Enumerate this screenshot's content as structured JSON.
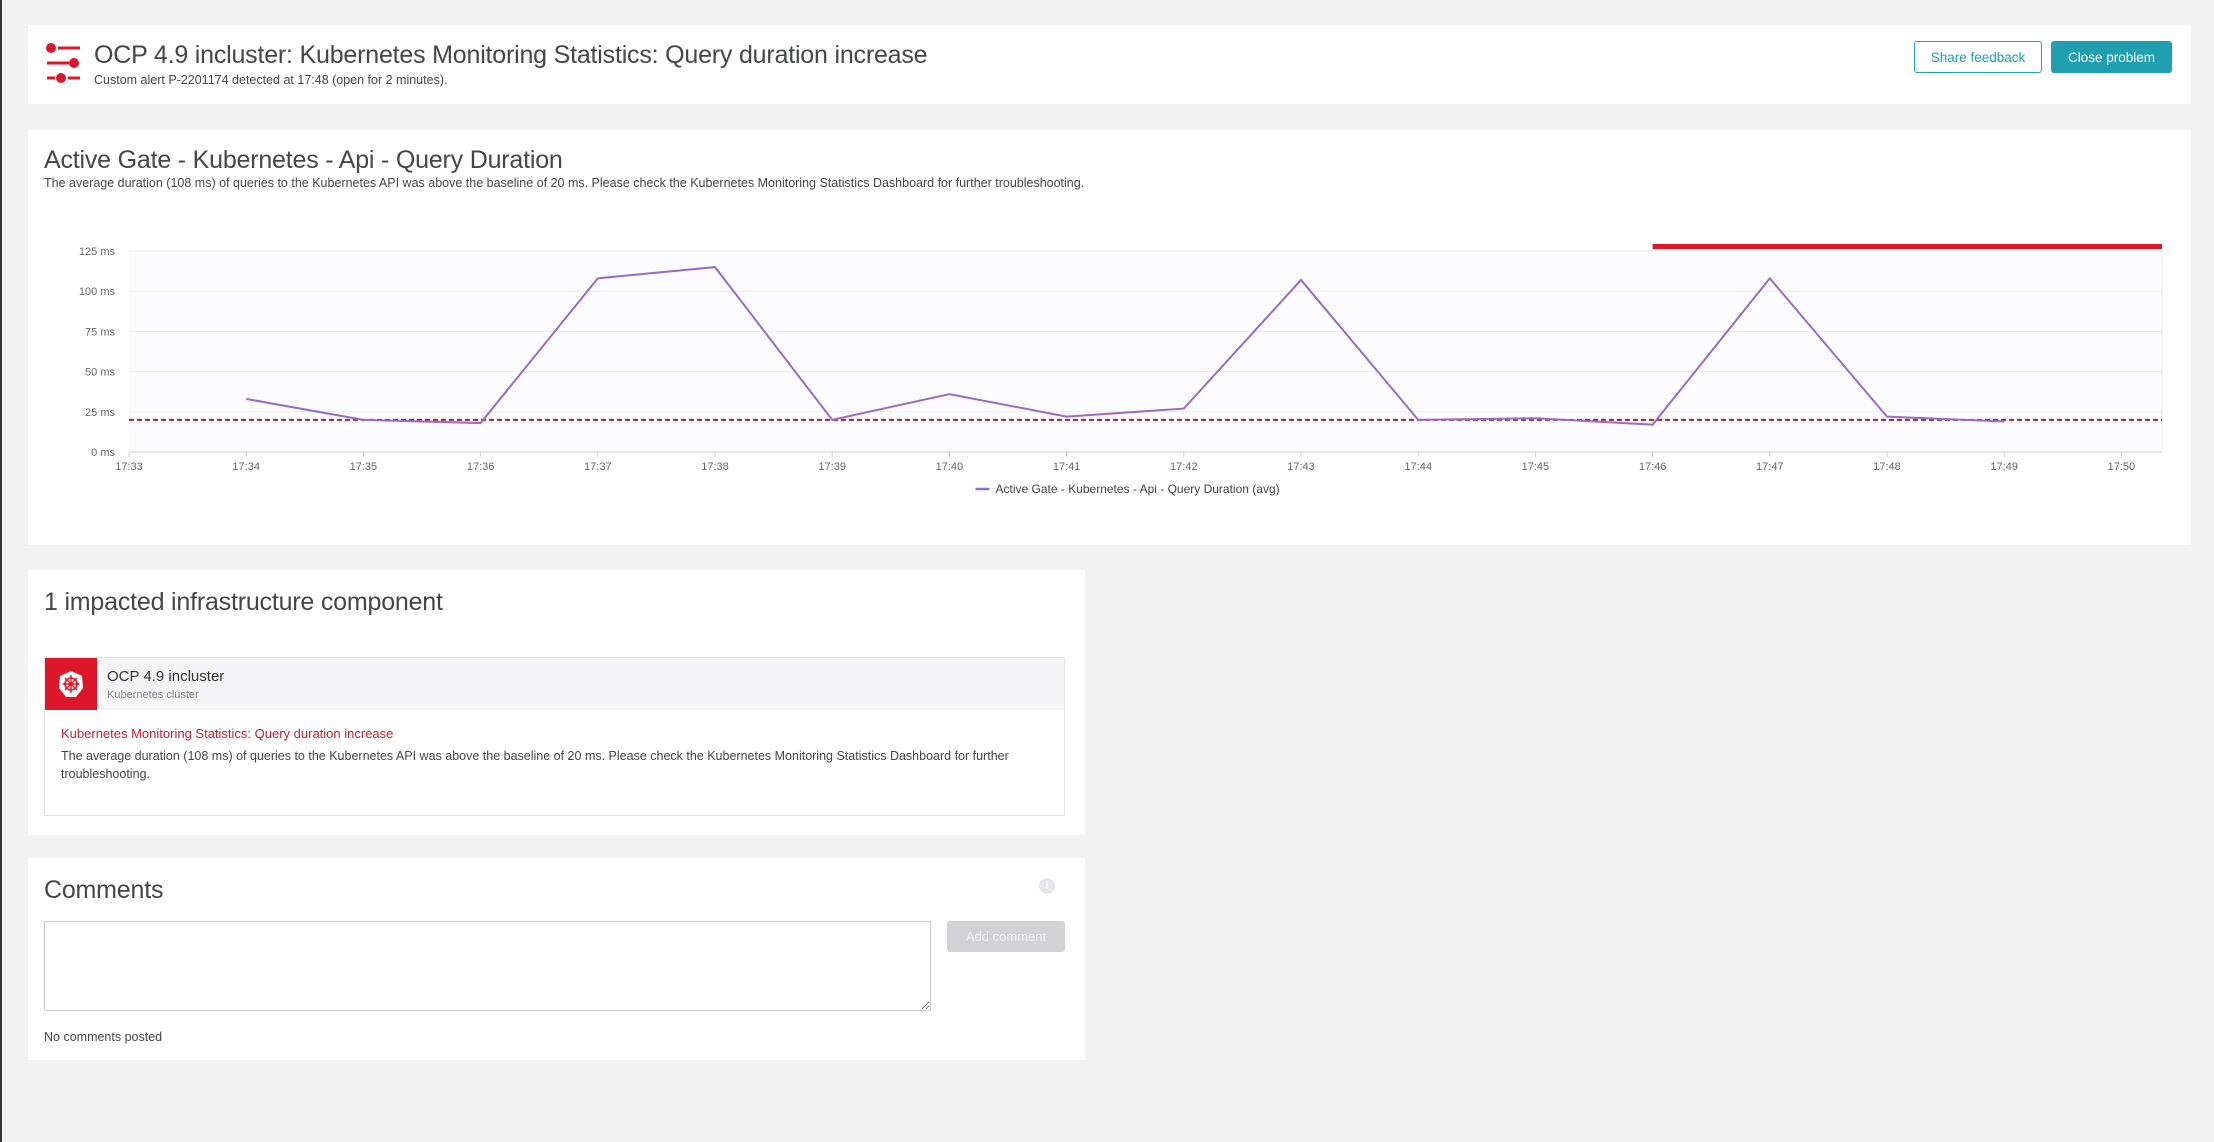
{
  "header": {
    "title": "OCP 4.9 incluster: Kubernetes Monitoring Statistics: Query duration increase",
    "subtitle": "Custom alert P-2201174 detected at 17:48 (open for 2 minutes).",
    "icon": "custom-alert-sliders-icon",
    "share_feedback_label": "Share feedback",
    "close_problem_label": "Close problem"
  },
  "colors": {
    "accent": "#1f9faf",
    "problem_red": "#dc172a",
    "series": "#9b6bc4",
    "baseline": "#b51e2f"
  },
  "chart_card": {
    "title": "Active Gate - Kubernetes - Api - Query Duration",
    "description": "The average duration (108 ms) of queries to the Kubernetes API was above the baseline of 20 ms. Please check the Kubernetes Monitoring Statistics Dashboard for further troubleshooting."
  },
  "chart_data": {
    "type": "line",
    "x_ticks": [
      "17:33",
      "17:34",
      "17:35",
      "17:36",
      "17:37",
      "17:38",
      "17:39",
      "17:40",
      "17:41",
      "17:42",
      "17:43",
      "17:44",
      "17:45",
      "17:46",
      "17:47",
      "17:48",
      "17:49",
      "17:50"
    ],
    "y_ticks": [
      "0 ms",
      "25 ms",
      "50 ms",
      "75 ms",
      "100 ms",
      "125 ms"
    ],
    "ylim": [
      0,
      125
    ],
    "series": [
      {
        "name": "Active Gate - Kubernetes - Api - Query Duration (avg)",
        "x": [
          "17:34",
          "17:35",
          "17:36",
          "17:37",
          "17:38",
          "17:39",
          "17:40",
          "17:41",
          "17:42",
          "17:43",
          "17:44",
          "17:45",
          "17:46",
          "17:47",
          "17:48",
          "17:49"
        ],
        "values": [
          33,
          20,
          18,
          108,
          115,
          20,
          36,
          22,
          27,
          107,
          20,
          21,
          17,
          108,
          22,
          19
        ]
      }
    ],
    "baseline": 20,
    "problem_window": [
      "17:46",
      "17:50"
    ],
    "grid": true,
    "legend": "bottom-center"
  },
  "impacted": {
    "title": "1 impacted infrastructure component",
    "component": {
      "name": "OCP 4.9 incluster",
      "type": "Kubernetes cluster",
      "icon": "kubernetes-helm-icon",
      "event_title": "Kubernetes Monitoring Statistics: Query duration increase",
      "event_description": "The average duration (108 ms) of queries to the Kubernetes API was above the baseline of 20 ms. Please check the Kubernetes Monitoring Statistics Dashboard for further troubleshooting."
    }
  },
  "comments": {
    "title": "Comments",
    "input_value": "",
    "add_label": "Add comment",
    "empty_text": "No comments posted"
  }
}
